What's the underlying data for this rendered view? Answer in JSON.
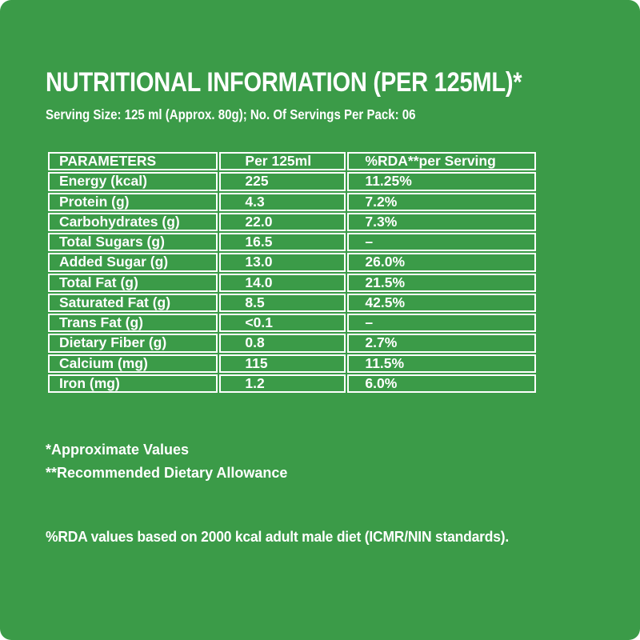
{
  "page": {
    "background_color": "#3B9B48",
    "text_color": "#FFFFFF",
    "title": "NUTRITIONAL INFORMATION (PER 125ML)*",
    "serving_info": "Serving Size: 125 ml (Approx. 80g); No. Of Servings Per Pack: 06",
    "footnote_approximate": "*Approximate Values",
    "footnote_rda": "**Recommended Dietary Allowance",
    "rda_basis_note": "%RDA values based on 2000 kcal adult male diet (ICMR/NIN standards)."
  },
  "table": {
    "headers": [
      "PARAMETERS",
      "Per 125ml",
      "%RDA**per Serving"
    ],
    "rows": [
      {
        "parameter": "Energy (kcal)",
        "per_125ml": "225",
        "rda_per_serving": "11.25%"
      },
      {
        "parameter": "Protein (g)",
        "per_125ml": "4.3",
        "rda_per_serving": "7.2%"
      },
      {
        "parameter": "Carbohydrates (g)",
        "per_125ml": "22.0",
        "rda_per_serving": "7.3%"
      },
      {
        "parameter": "Total Sugars (g)",
        "per_125ml": "16.5",
        "rda_per_serving": "–"
      },
      {
        "parameter": "Added Sugar (g)",
        "per_125ml": "13.0",
        "rda_per_serving": "26.0%"
      },
      {
        "parameter": "Total Fat (g)",
        "per_125ml": "14.0",
        "rda_per_serving": "21.5%"
      },
      {
        "parameter": "Saturated Fat (g)",
        "per_125ml": "8.5",
        "rda_per_serving": "42.5%"
      },
      {
        "parameter": "Trans Fat (g)",
        "per_125ml": "<0.1",
        "rda_per_serving": "–"
      },
      {
        "parameter": "Dietary Fiber (g)",
        "per_125ml": "0.8",
        "rda_per_serving": "2.7%"
      },
      {
        "parameter": "Calcium (mg)",
        "per_125ml": "115",
        "rda_per_serving": "11.5%"
      },
      {
        "parameter": "Iron (mg)",
        "per_125ml": "1.2",
        "rda_per_serving": "6.0%"
      }
    ]
  }
}
